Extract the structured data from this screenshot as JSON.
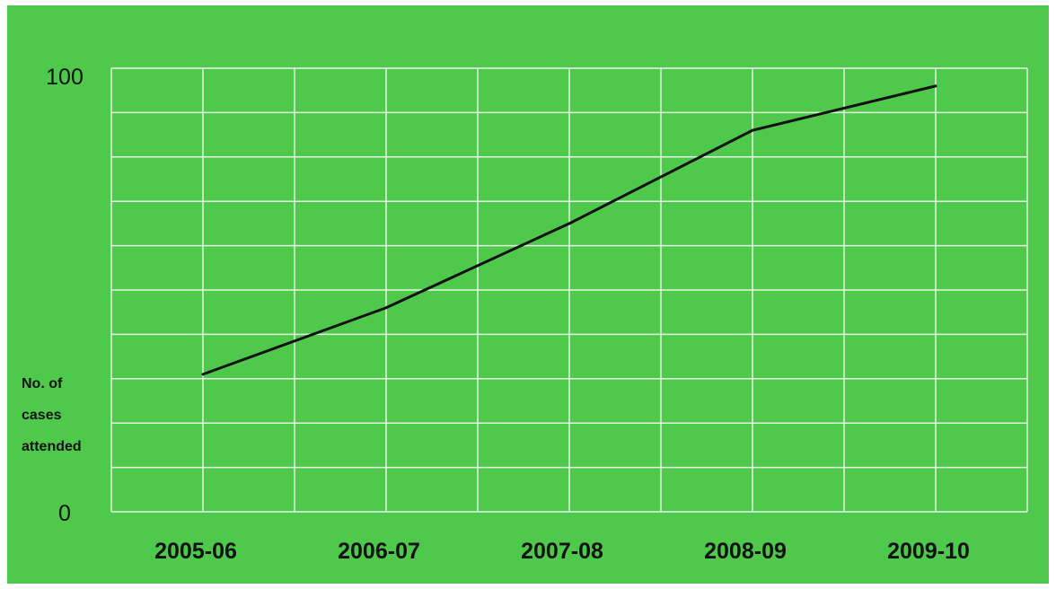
{
  "colors": {
    "background": "#4fc94b",
    "grid": "#e6f5e4",
    "line": "#111111"
  },
  "chart_data": {
    "type": "line",
    "title": "",
    "xlabel": "",
    "ylabel": [
      "No. of",
      "cases",
      "attended"
    ],
    "categories": [
      "2005-06",
      "2006-07",
      "2007-08",
      "2008-09",
      "2009-10"
    ],
    "y_ticks": [
      "0",
      "100"
    ],
    "ylim": [
      0,
      100
    ],
    "grid": true,
    "series": [
      {
        "values": [
          31,
          46,
          65,
          86,
          96
        ]
      }
    ]
  }
}
